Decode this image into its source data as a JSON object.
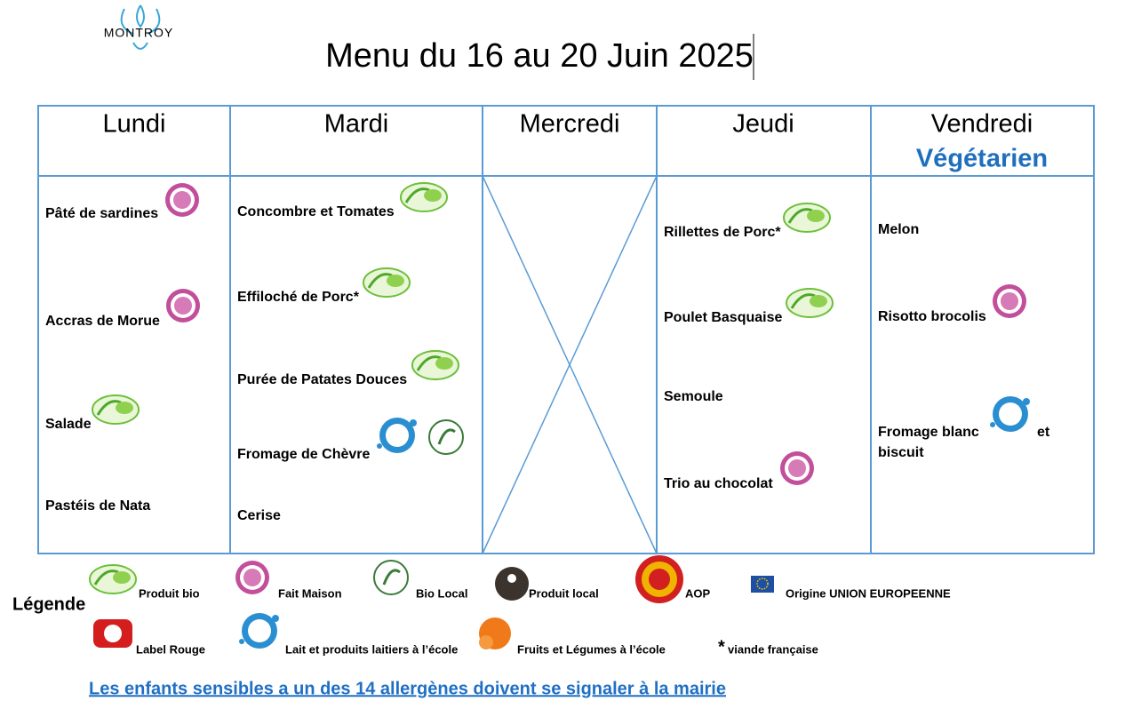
{
  "brand": "MONTROY",
  "title": "Menu du 16 au 20 Juin 2025",
  "days": [
    {
      "name": "Lundi",
      "items": [
        "Pâté de sardines",
        "Accras de Morue",
        "Salade",
        "Pastéis de Nata"
      ]
    },
    {
      "name": "Mardi",
      "items": [
        "Concombre et Tomates",
        "Effiloché de Porc*",
        "Purée de Patates Douces",
        "Fromage de Chèvre",
        "Cerise"
      ]
    },
    {
      "name": "Mercredi",
      "items": []
    },
    {
      "name": "Jeudi",
      "items": [
        "Rillettes de Porc*",
        "Poulet Basquaise",
        "Semoule",
        "Trio au chocolat"
      ]
    },
    {
      "name": "Vendredi",
      "subtitle": "Végétarien",
      "items": [
        "Melon",
        "Risotto brocolis",
        "Fromage blanc",
        "et",
        "biscuit"
      ]
    }
  ],
  "legend": {
    "title": "Légende",
    "entries": [
      "Produit bio",
      "Fait Maison",
      "Bio Local",
      "Produit local",
      "AOP",
      "Origine UNION EUROPEENNE",
      "Label Rouge",
      "Lait et produits laitiers à l’école",
      "Fruits et Légumes à l’école"
    ],
    "asterisk": "*",
    "asterisk_note": "viande française"
  },
  "notice": "Les enfants sensibles a un des 14 allergènes doivent se signaler à la mairie"
}
